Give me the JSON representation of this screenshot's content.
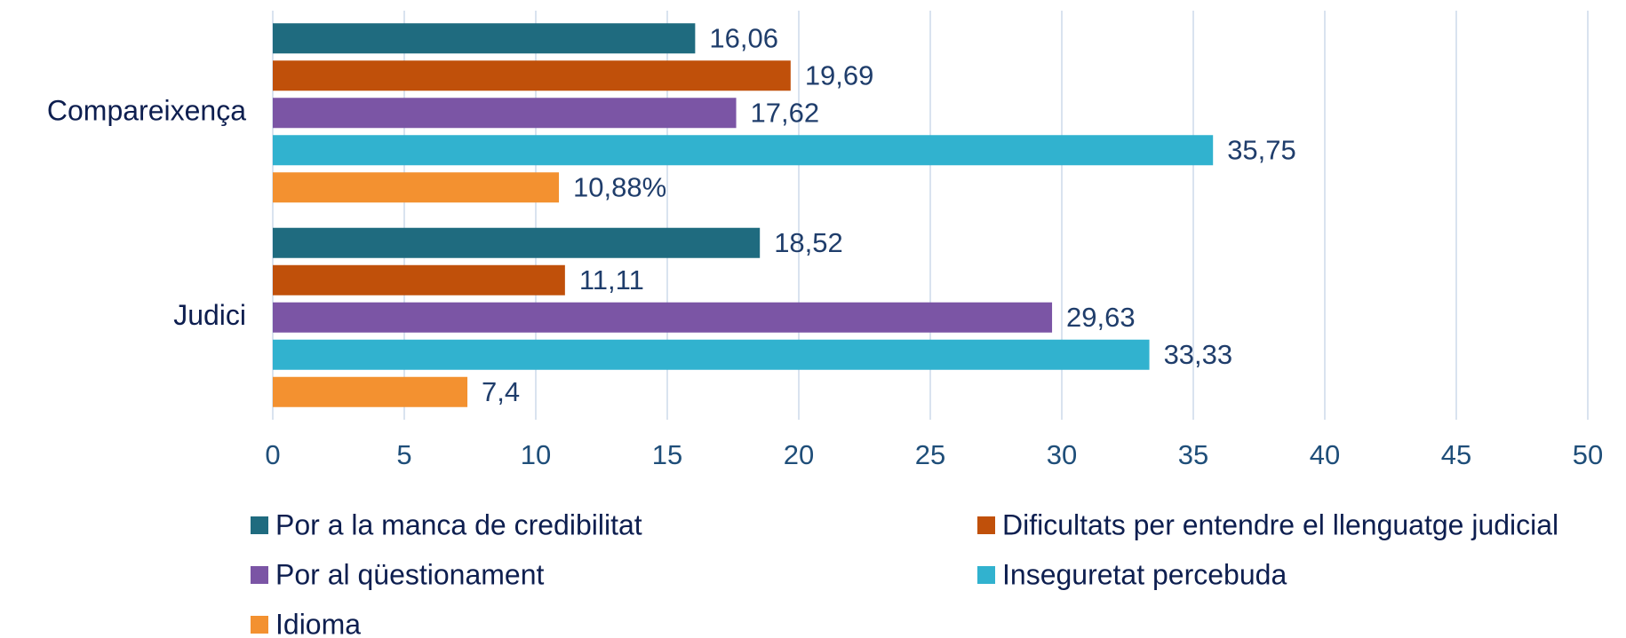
{
  "chart_data": {
    "type": "barh",
    "categories": [
      "Compareixença",
      "Judici"
    ],
    "series": [
      {
        "name": "Por a la manca de credibilitat",
        "color": "#1f6b7f",
        "values": [
          16.06,
          18.52
        ],
        "value_labels": [
          "16,06",
          "18,52"
        ]
      },
      {
        "name": "Dificultats per entendre el llenguatge judicial",
        "color": "#c0500a",
        "values": [
          19.69,
          11.11
        ],
        "value_labels": [
          "19,69",
          "11,11"
        ]
      },
      {
        "name": "Por al qüestionament",
        "color": "#7b55a5",
        "values": [
          17.62,
          29.63
        ],
        "value_labels": [
          "17,62",
          "29,63"
        ]
      },
      {
        "name": "Inseguretat percebuda",
        "color": "#31b2cf",
        "values": [
          35.75,
          33.33
        ],
        "value_labels": [
          "35,75",
          "33,33"
        ]
      },
      {
        "name": "Idioma",
        "color": "#f39130",
        "values": [
          10.88,
          7.4
        ],
        "value_labels": [
          "10,88%",
          "7,4"
        ]
      }
    ],
    "xlim": [
      0,
      50
    ],
    "xticks": [
      0,
      5,
      10,
      15,
      20,
      25,
      30,
      35,
      40,
      45,
      50
    ],
    "grid": true,
    "legend": "bottom"
  }
}
